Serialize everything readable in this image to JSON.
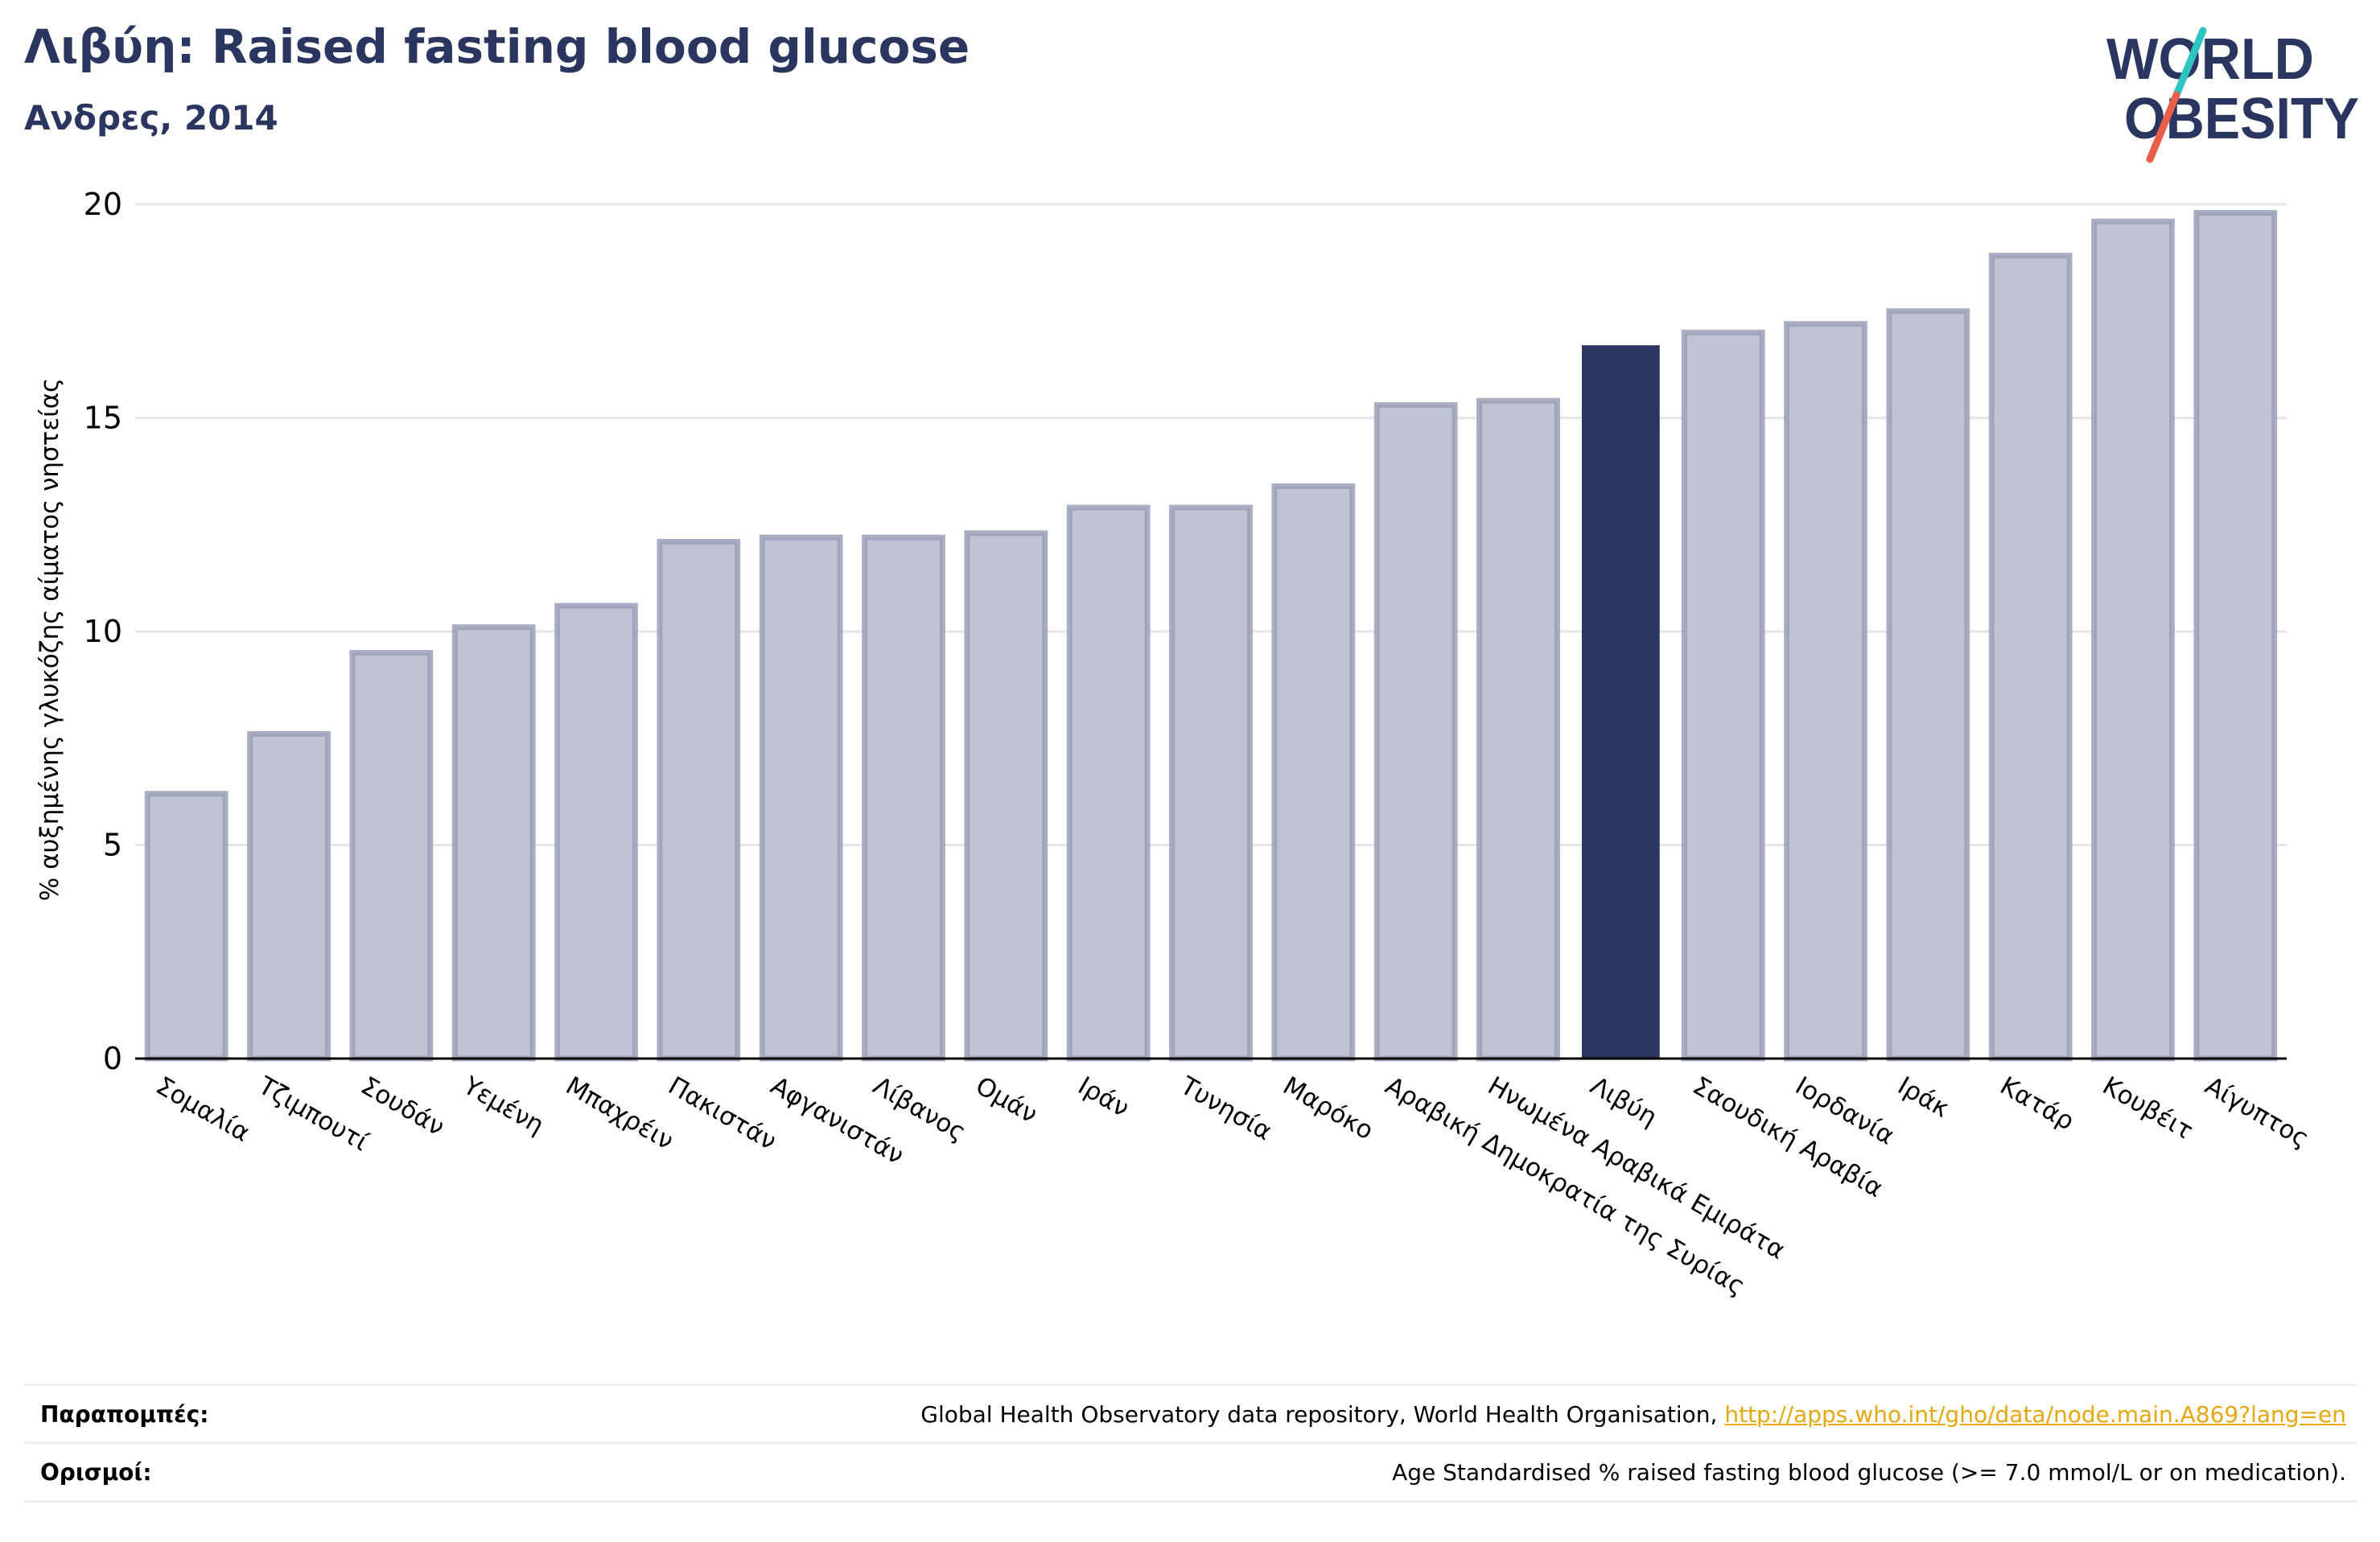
{
  "header": {
    "title": "Λιβύη: Raised fasting blood glucose",
    "subtitle": "Ανδρες, 2014"
  },
  "logo": {
    "line1": "WORLD",
    "line2": "OBESITY",
    "text_color": "#2a3560",
    "slash_teal": "#2ec4c4",
    "slash_red": "#e8604c"
  },
  "colors": {
    "bar": "#c0c3d1",
    "bar_edge": "#9aa0b8",
    "highlight": "#2a3560",
    "grid": "#e6e6e6",
    "axis": "#000000"
  },
  "chart_data": {
    "type": "bar",
    "title": "Λιβύη: Raised fasting blood glucose",
    "subtitle": "Ανδρες, 2014",
    "xlabel": "",
    "ylabel": "% αυξημένης γλυκόζης αίματος νηστείας",
    "ylim": [
      0,
      20
    ],
    "yticks": [
      0,
      5,
      10,
      15,
      20
    ],
    "grid": true,
    "highlight": "Λιβύη",
    "categories": [
      "Σομαλία",
      "Τζιμπουτί",
      "Σουδάν",
      "Υεμένη",
      "Μπαχρέιν",
      "Πακιστάν",
      "Αφγανιστάν",
      "Λίβανος",
      "Ομάν",
      "Ιράν",
      "Τυνησία",
      "Μαρόκο",
      "Αραβική Δημοκρατία της Συρίας",
      "Ηνωμένα Αραβικά Εμιράτα",
      "Λιβύη",
      "Σαουδική Αραβία",
      "Ιορδανία",
      "Ιράκ",
      "Κατάρ",
      "Κουβέιτ",
      "Αίγυπτος"
    ],
    "values": [
      6.2,
      7.6,
      9.5,
      10.1,
      10.6,
      12.1,
      12.2,
      12.2,
      12.3,
      12.9,
      12.9,
      13.4,
      15.3,
      15.4,
      16.7,
      17.0,
      17.2,
      17.5,
      18.8,
      19.6,
      19.8
    ]
  },
  "footer": {
    "references_label": "Παραπομπές:",
    "references_text": "Global Health Observatory data repository, World Health Organisation, ",
    "references_link": "http://apps.who.int/gho/data/node.main.A869?lang=en",
    "definitions_label": "Ορισμοί:",
    "definitions_text": "Age Standardised % raised fasting blood glucose (>= 7.0 mmol/L or on medication)."
  }
}
